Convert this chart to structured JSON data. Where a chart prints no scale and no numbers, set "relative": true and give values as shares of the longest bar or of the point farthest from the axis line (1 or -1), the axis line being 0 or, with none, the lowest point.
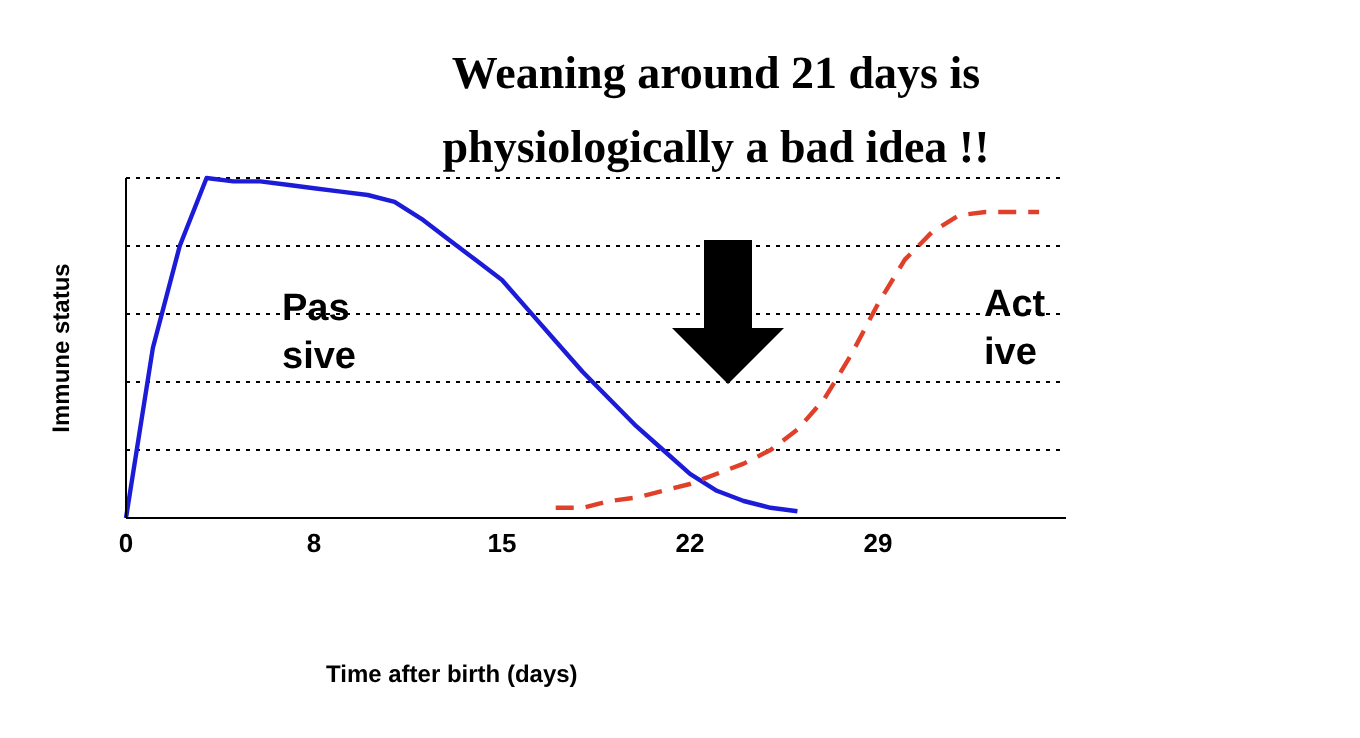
{
  "chart_data": {
    "type": "line",
    "title": "Weaning around 21 days is physiologically a bad idea !!",
    "xlabel": "Time after birth (days)",
    "ylabel": "Immune status",
    "relative": true,
    "grid": "y",
    "marker": "none",
    "categories": [
      "0",
      null,
      null,
      null,
      null,
      null,
      null,
      "8",
      null,
      null,
      null,
      null,
      null,
      null,
      "15",
      null,
      null,
      null,
      null,
      null,
      null,
      "22",
      null,
      null,
      null,
      null,
      null,
      null,
      "29",
      null,
      null,
      null,
      null,
      null,
      null,
      null
    ],
    "series": [
      {
        "name": "Pas\nsive",
        "color": "#1c1cd8",
        "line_style": "solid",
        "values": [
          0,
          0.5,
          0.8,
          1,
          0.99,
          0.99,
          0.98,
          0.97,
          0.96,
          0.95,
          0.93,
          0.88,
          0.82,
          0.76,
          0.7,
          0.61,
          0.52,
          0.43,
          0.35,
          0.27,
          0.2,
          0.13,
          0.08,
          0.05,
          0.03,
          0.02,
          null,
          null,
          null,
          null,
          null,
          null,
          null,
          null,
          null,
          null
        ]
      },
      {
        "name": "Act\nive",
        "color": "#e0402a",
        "line_style": "dashed",
        "values": [
          null,
          null,
          null,
          null,
          null,
          null,
          null,
          null,
          null,
          null,
          null,
          null,
          null,
          null,
          null,
          null,
          0.03,
          0.03,
          0.05,
          0.06,
          0.08,
          0.1,
          0.13,
          0.16,
          0.2,
          0.26,
          0.35,
          0.48,
          0.63,
          0.76,
          0.84,
          0.89,
          0.9,
          0.9,
          0.9,
          null
        ]
      }
    ]
  }
}
